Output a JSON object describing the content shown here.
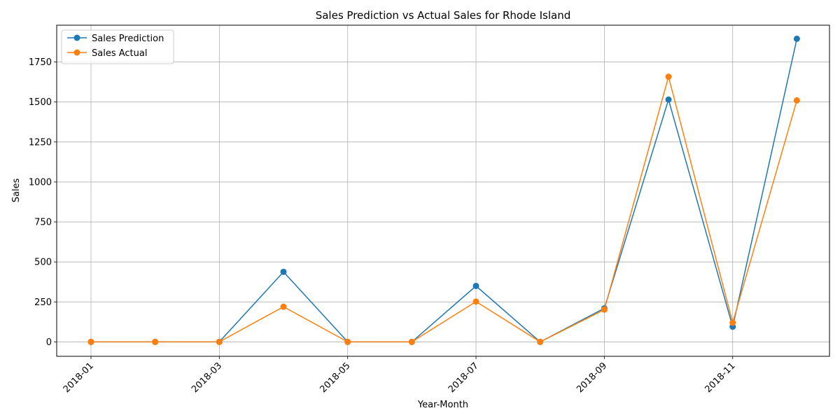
{
  "chart_data": {
    "type": "line",
    "title": "Sales Prediction vs Actual Sales for Rhode Island",
    "xlabel": "Year-Month",
    "ylabel": "Sales",
    "x": [
      "2018-01",
      "2018-02",
      "2018-03",
      "2018-04",
      "2018-05",
      "2018-06",
      "2018-07",
      "2018-08",
      "2018-09",
      "2018-10",
      "2018-11",
      "2018-12"
    ],
    "x_ticks": [
      "2018-01",
      "2018-03",
      "2018-05",
      "2018-07",
      "2018-09",
      "2018-11"
    ],
    "y_ticks": [
      0,
      250,
      500,
      750,
      1000,
      1250,
      1500,
      1750
    ],
    "ylim": [
      -90,
      1980
    ],
    "grid": true,
    "legend_position": "upper-left",
    "series": [
      {
        "name": "Sales Prediction",
        "color": "#1f77b4",
        "values": [
          0,
          0,
          0,
          438,
          0,
          0,
          350,
          0,
          210,
          1515,
          95,
          1895
        ]
      },
      {
        "name": "Sales Actual",
        "color": "#ff7f0e",
        "values": [
          0,
          0,
          0,
          220,
          0,
          0,
          252,
          0,
          202,
          1658,
          120,
          1510
        ]
      }
    ]
  }
}
